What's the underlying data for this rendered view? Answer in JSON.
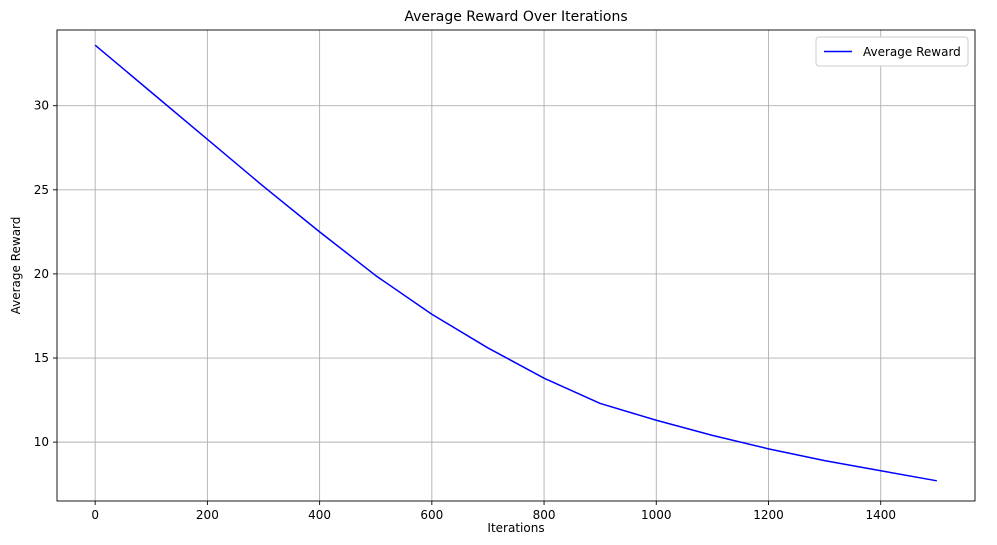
{
  "chart_data": {
    "type": "line",
    "title": "Average Reward Over Iterations",
    "xlabel": "Iterations",
    "ylabel": "Average Reward",
    "xlim": [
      -68,
      1568
    ],
    "ylim": [
      6.5,
      34.5
    ],
    "xticks": [
      0,
      200,
      400,
      600,
      800,
      1000,
      1200,
      1400
    ],
    "yticks": [
      10,
      15,
      20,
      25,
      30
    ],
    "grid": true,
    "legend_position": "top-right",
    "series": [
      {
        "name": "Average Reward",
        "color": "#0000ff",
        "x": [
          0,
          100,
          200,
          300,
          400,
          500,
          600,
          700,
          800,
          900,
          1000,
          1100,
          1200,
          1300,
          1400,
          1500
        ],
        "y": [
          33.6,
          30.8,
          28.0,
          25.2,
          22.5,
          19.9,
          17.6,
          15.6,
          13.8,
          12.3,
          11.3,
          10.4,
          9.6,
          8.9,
          8.3,
          7.7
        ]
      }
    ]
  }
}
